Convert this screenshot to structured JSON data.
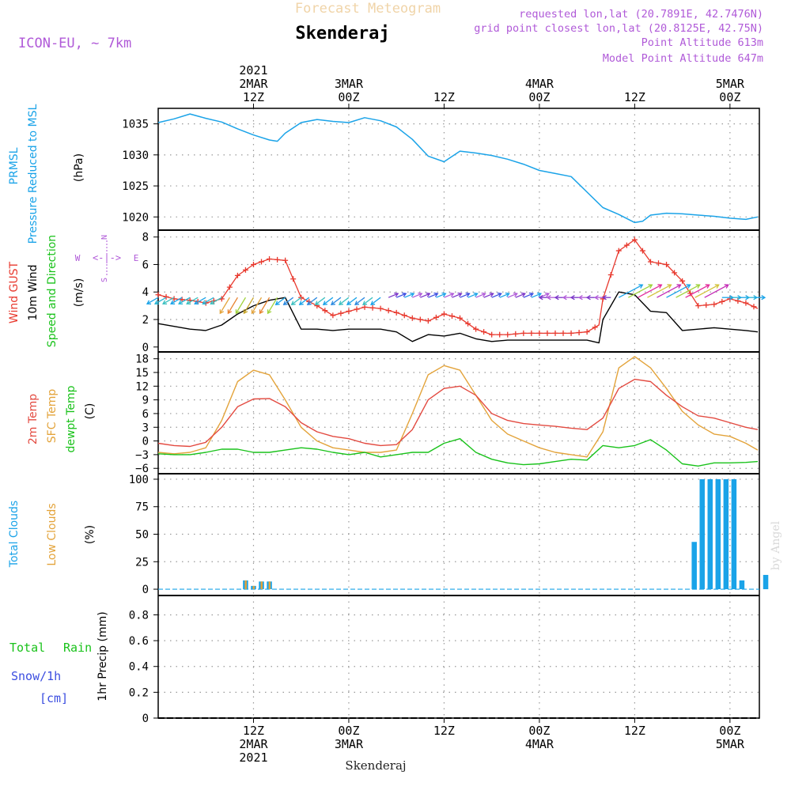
{
  "header": {
    "title_top": "Forecast Meteogram",
    "location": "Skenderaj",
    "model": "ICON-EU, ~ 7km",
    "requested": "requested lon,lat (20.7891E, 42.7476N)",
    "gridpoint": "grid point closest lon,lat (20.8125E, 42.75N)",
    "point_alt": "Point Altitude 613m",
    "model_alt": "Model Point Altitude 647m",
    "footer_location": "Skenderaj",
    "credit": "by Angel"
  },
  "colors": {
    "pressure": "#1aa3e8",
    "gust": "#e8392e",
    "wind10": "#000000",
    "t2m": "#e34a40",
    "sfc": "#e3a33a",
    "dew": "#19c21a",
    "total_clouds": "#1aa3e8",
    "low_clouds": "#e3a33a",
    "purple": "#b05ad8",
    "rain_green": "#19c21a",
    "snow_blue": "#3b4de0"
  },
  "time_axis": {
    "top_ticks": [
      {
        "lines": [
          "2021",
          "2MAR",
          "12Z"
        ],
        "t": 0
      },
      {
        "lines": [
          "3MAR",
          "00Z"
        ],
        "t": 12
      },
      {
        "lines": [
          "12Z"
        ],
        "t": 24
      },
      {
        "lines": [
          "4MAR",
          "00Z"
        ],
        "t": 36
      },
      {
        "lines": [
          "12Z"
        ],
        "t": 48
      },
      {
        "lines": [
          "5MAR",
          "00Z"
        ],
        "t": 60
      }
    ],
    "bottom_ticks": [
      {
        "lines": [
          "12Z",
          "2MAR",
          "2021"
        ],
        "t": 0
      },
      {
        "lines": [
          "00Z",
          "3MAR"
        ],
        "t": 12
      },
      {
        "lines": [
          "12Z"
        ],
        "t": 24
      },
      {
        "lines": [
          "00Z",
          "4MAR"
        ],
        "t": 36
      },
      {
        "lines": [
          "12Z"
        ],
        "t": 48
      },
      {
        "lines": [
          "00Z",
          "5MAR"
        ],
        "t": 60
      }
    ]
  },
  "panels": {
    "pressure": {
      "labels": [
        {
          "text": "PRMSL",
          "color": "#1aa3e8"
        },
        {
          "text": "Pressure Reduced to MSL",
          "color": "#1aa3e8"
        },
        {
          "text": "(hPa)",
          "color": "#000000"
        }
      ],
      "ticks": [
        "1020",
        "1025",
        "1030",
        "1035"
      ]
    },
    "wind": {
      "labels": [
        {
          "text": "Wind GUST",
          "color": "#e8392e"
        },
        {
          "text": "10m Wind",
          "color": "#000000"
        },
        {
          "text": "Speed and Direction",
          "color": "#19c21a"
        },
        {
          "text": "(m/s)",
          "color": "#000000"
        }
      ],
      "compass": {
        "n": "N",
        "s": "S",
        "w": "W",
        "e": "E",
        "arrows": "<-|->"
      },
      "ticks": [
        "0",
        "2",
        "4",
        "6",
        "8"
      ]
    },
    "temp": {
      "labels": [
        {
          "text": "2m Temp",
          "color": "#e34a40"
        },
        {
          "text": "SFC Temp",
          "color": "#e3a33a"
        },
        {
          "text": "dewpt Temp",
          "color": "#19c21a"
        },
        {
          "text": "(C)",
          "color": "#000000"
        }
      ],
      "ticks": [
        "−6",
        "−3",
        "0",
        "3",
        "6",
        "9",
        "12",
        "15",
        "18"
      ]
    },
    "clouds": {
      "labels": [
        {
          "text": "Total Clouds",
          "color": "#1aa3e8"
        },
        {
          "text": "Low Clouds",
          "color": "#e3a33a"
        },
        {
          "text": "(%)",
          "color": "#000000"
        }
      ],
      "ticks": [
        "0",
        "25",
        "50",
        "75",
        "100"
      ]
    },
    "precip": {
      "labels": [
        {
          "text": "Total",
          "color": "#19c21a"
        },
        {
          "text": "Rain",
          "color": "#19c21a"
        },
        {
          "text": "Snow/1h",
          "color": "#3b4de0"
        },
        {
          "text": "[cm]",
          "color": "#3b4de0"
        },
        {
          "text": "1hr Precip (mm)",
          "color": "#000000"
        }
      ],
      "ticks": [
        "0",
        "0.2",
        "0.4",
        "0.6",
        "0.8"
      ]
    }
  },
  "chart_data": [
    {
      "type": "line",
      "title": "PRMSL Pressure Reduced to MSL",
      "ylabel": "(hPa)",
      "ylim": [
        1018,
        1037.5
      ],
      "x_hours_from_2MAR_12Z": [
        -12,
        -10,
        -8,
        -6,
        -4,
        -2,
        0,
        2,
        3,
        4,
        6,
        8,
        10,
        12,
        14,
        16,
        18,
        20,
        22,
        24,
        26,
        28,
        30,
        32,
        34,
        36,
        38,
        40,
        42,
        44,
        46,
        48,
        49,
        50,
        52,
        54,
        56,
        58,
        60,
        62,
        63.5
      ],
      "series": [
        {
          "name": "PRMSL",
          "values": [
            1035.2,
            1035.8,
            1036.6,
            1035.9,
            1035.3,
            1034.2,
            1033.2,
            1032.4,
            1032.2,
            1033.5,
            1035.2,
            1035.7,
            1035.4,
            1035.2,
            1036.0,
            1035.5,
            1034.5,
            1032.5,
            1029.8,
            1028.9,
            1030.6,
            1030.3,
            1029.9,
            1029.3,
            1028.5,
            1027.5,
            1027.0,
            1026.5,
            1024.0,
            1021.5,
            1020.4,
            1019.1,
            1019.3,
            1020.3,
            1020.6,
            1020.5,
            1020.3,
            1020.1,
            1019.8,
            1019.6,
            1020.0
          ]
        }
      ]
    },
    {
      "type": "line",
      "title": "Wind GUST / 10m Wind Speed and Direction",
      "ylabel": "(m/s)",
      "ylim": [
        -0.3,
        8.5
      ],
      "x_hours_from_2MAR_12Z": [
        -12,
        -10,
        -8,
        -6,
        -4,
        -2,
        0,
        2,
        4,
        6,
        8,
        10,
        12,
        14,
        16,
        18,
        20,
        22,
        24,
        26,
        28,
        30,
        32,
        34,
        36,
        38,
        40,
        42,
        43.5,
        44,
        46,
        48,
        50,
        52,
        54,
        56,
        58,
        60,
        62,
        63.5
      ],
      "series": [
        {
          "name": "Wind GUST",
          "values": [
            3.8,
            3.5,
            3.4,
            3.2,
            3.5,
            5.2,
            6.0,
            6.4,
            6.3,
            3.6,
            3.0,
            2.3,
            2.6,
            2.9,
            2.8,
            2.5,
            2.1,
            1.9,
            2.4,
            2.1,
            1.3,
            0.9,
            0.9,
            1.0,
            1.0,
            1.0,
            1.0,
            1.1,
            1.6,
            3.5,
            7.0,
            7.8,
            6.2,
            6.0,
            4.8,
            3.0,
            3.1,
            3.5,
            3.2,
            2.8
          ]
        },
        {
          "name": "10m Wind",
          "values": [
            1.7,
            1.5,
            1.3,
            1.2,
            1.6,
            2.4,
            3.0,
            3.4,
            3.6,
            1.3,
            1.3,
            1.2,
            1.3,
            1.3,
            1.3,
            1.1,
            0.4,
            0.9,
            0.8,
            1.0,
            0.6,
            0.4,
            0.5,
            0.5,
            0.5,
            0.5,
            0.5,
            0.5,
            0.3,
            2.0,
            4.0,
            3.8,
            2.6,
            2.5,
            1.2,
            1.3,
            1.4,
            1.3,
            1.2,
            1.1
          ]
        }
      ]
    },
    {
      "type": "line",
      "title": "2m Temp / SFC Temp / dewpt Temp",
      "ylabel": "(C)",
      "ylim": [
        -7,
        19.5
      ],
      "x_hours_from_2MAR_12Z": [
        -12,
        -10,
        -8,
        -6,
        -4,
        -2,
        0,
        2,
        4,
        6,
        8,
        10,
        12,
        14,
        16,
        18,
        20,
        22,
        24,
        26,
        28,
        30,
        32,
        34,
        36,
        38,
        40,
        42,
        44,
        46,
        48,
        50,
        52,
        54,
        56,
        58,
        60,
        62,
        63.5
      ],
      "series": [
        {
          "name": "2m Temp",
          "values": [
            -0.5,
            -1.0,
            -1.2,
            -0.3,
            3.0,
            7.5,
            9.2,
            9.3,
            7.5,
            4.0,
            2.0,
            1.0,
            0.5,
            -0.5,
            -1.0,
            -0.8,
            2.5,
            9.0,
            11.5,
            12.0,
            10.0,
            6.0,
            4.5,
            3.8,
            3.5,
            3.2,
            2.8,
            2.5,
            5.0,
            11.5,
            13.5,
            13.0,
            10.0,
            7.5,
            5.5,
            5.0,
            4.0,
            3.0,
            2.5
          ]
        },
        {
          "name": "SFC Temp",
          "values": [
            -2.5,
            -2.8,
            -2.5,
            -1.5,
            4.5,
            13.0,
            15.5,
            14.5,
            9.0,
            3.0,
            0.0,
            -1.5,
            -2.0,
            -2.5,
            -2.5,
            -2.0,
            6.0,
            14.5,
            16.5,
            15.5,
            10.0,
            4.5,
            1.5,
            0.0,
            -1.5,
            -2.5,
            -3.0,
            -3.5,
            2.0,
            16.0,
            18.5,
            16.0,
            11.5,
            6.5,
            3.5,
            1.5,
            1.0,
            -0.5,
            -2.0
          ]
        },
        {
          "name": "dewpt Temp",
          "values": [
            -2.8,
            -3.0,
            -3.0,
            -2.5,
            -1.8,
            -1.8,
            -2.5,
            -2.5,
            -2.0,
            -1.5,
            -1.8,
            -2.5,
            -3.0,
            -2.5,
            -3.5,
            -3.0,
            -2.5,
            -2.5,
            -0.5,
            0.5,
            -2.5,
            -4.0,
            -4.8,
            -5.2,
            -5.0,
            -4.5,
            -4.0,
            -4.2,
            -1.0,
            -1.5,
            -1.0,
            0.3,
            -2.0,
            -5.0,
            -5.5,
            -4.8,
            -4.8,
            -4.7,
            -4.5
          ]
        }
      ]
    },
    {
      "type": "bar",
      "title": "Total Clouds / Low Clouds",
      "ylabel": "(%)",
      "ylim": [
        -5,
        105
      ],
      "series": [
        {
          "name": "Total Clouds",
          "x_hours_from_2MAR_12Z": [
            -1,
            0,
            1,
            2,
            55.5,
            56.5,
            57.5,
            58.5,
            59.5,
            60.5,
            61.5,
            64.5
          ],
          "values": [
            8,
            3,
            7,
            7,
            43,
            100,
            100,
            100,
            100,
            100,
            8,
            13
          ]
        },
        {
          "name": "Low Clouds",
          "x_hours_from_2MAR_12Z": [
            -1,
            0,
            1,
            2
          ],
          "values": [
            8,
            3,
            7,
            7
          ]
        }
      ]
    },
    {
      "type": "bar",
      "title": "1hr Precip",
      "ylabel": "1hr Precip (mm)",
      "ylim": [
        0,
        0.95
      ],
      "series": [
        {
          "name": "Total Rain",
          "values": []
        },
        {
          "name": "Snow/1h",
          "values": []
        }
      ]
    }
  ]
}
